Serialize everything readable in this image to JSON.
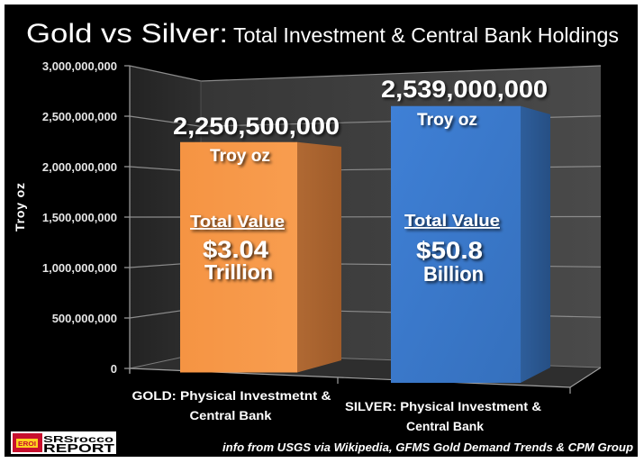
{
  "title": {
    "main": "Gold vs Silver:",
    "sub": "Total Investment & Central Bank Holdings"
  },
  "chart_data": {
    "type": "bar",
    "style": "3d-clustered-column",
    "title": "Gold vs Silver: Total Investment & Central Bank Holdings",
    "xlabel": "",
    "ylabel": "Troy oz",
    "categories": [
      "GOLD: Physical Investmetnt & Central Bank",
      "SILVER: Physical Investment & Central Bank"
    ],
    "category_lines": [
      [
        "GOLD: Physical Investmetnt &",
        "Central Bank"
      ],
      [
        "SILVER: Physical Investment &",
        "Central Bank"
      ]
    ],
    "values": [
      2250500000,
      2539000000
    ],
    "ylim": [
      0,
      3000000000
    ],
    "yticks": [
      0,
      500000000,
      1000000000,
      1500000000,
      2000000000,
      2500000000,
      3000000000
    ],
    "ytick_labels": [
      "0",
      "500,000,000",
      "1,000,000,000",
      "1,500,000,000",
      "2,000,000,000",
      "2,500,000,000",
      "3,000,000,000"
    ],
    "grid": true,
    "legend": null,
    "colors": [
      "#F7994A",
      "#3B7BCF"
    ],
    "annotations": [
      {
        "value_label": "2,250,500,000",
        "unit": "Troy oz",
        "total_value_heading": "Total Value",
        "total_value": "$3.04",
        "total_value_unit": "Trillion"
      },
      {
        "value_label": "2,539,000,000",
        "unit": "Troy oz",
        "total_value_heading": "Total Value",
        "total_value": "$50.8",
        "total_value_unit": "Billion"
      }
    ]
  },
  "source_note": "info from USGS via Wikipedia, GFMS Gold Demand Trends & CPM Group",
  "logo": {
    "badge": "EROI",
    "line1": "SRSrocco",
    "line2": "REPORT"
  },
  "theme": {
    "background": "#000000",
    "back_wall": "#414141",
    "side_wall": "#2a2a2a",
    "floor": "#303030",
    "gridline": "#8c8c8c",
    "gold_side": "#A86330",
    "silver_side": "#2C5A93"
  }
}
